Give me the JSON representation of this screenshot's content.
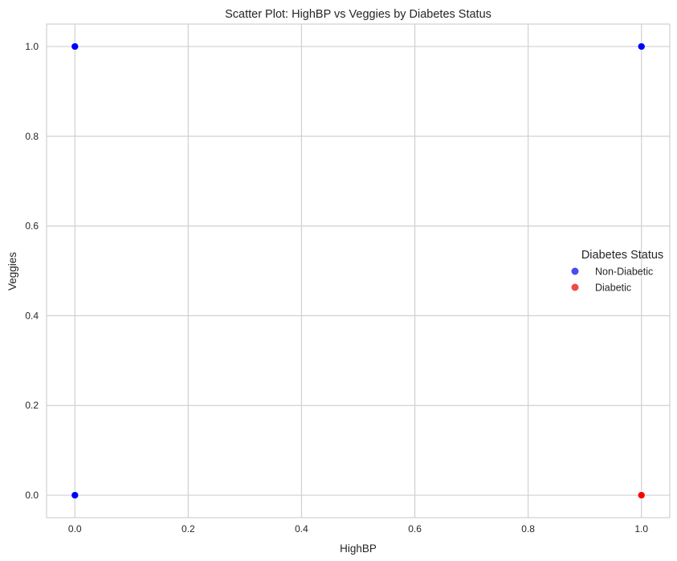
{
  "chart_data": {
    "type": "scatter",
    "title": "Scatter Plot: HighBP vs Veggies by Diabetes Status",
    "xlabel": "HighBP",
    "ylabel": "Veggies",
    "xlim": [
      -0.05,
      1.05
    ],
    "ylim": [
      -0.05,
      1.05
    ],
    "xticks": [
      0.0,
      0.2,
      0.4,
      0.6,
      0.8,
      1.0
    ],
    "xtick_labels": [
      "0.0",
      "0.2",
      "0.4",
      "0.6",
      "0.8",
      "1.0"
    ],
    "yticks": [
      0.0,
      0.2,
      0.4,
      0.6,
      0.8,
      1.0
    ],
    "ytick_labels": [
      "0.0",
      "0.2",
      "0.4",
      "0.6",
      "0.8",
      "1.0"
    ],
    "grid": true,
    "legend": {
      "title": "Diabetes Status",
      "placement": "center-right"
    },
    "series": [
      {
        "name": "Non-Diabetic",
        "color": "#0000ff",
        "legend_color": "#4a4af2",
        "points": [
          {
            "x": 0,
            "y": 0
          },
          {
            "x": 0,
            "y": 1
          },
          {
            "x": 1,
            "y": 1
          }
        ]
      },
      {
        "name": "Diabetic",
        "color": "#ff0000",
        "legend_color": "#ef4a4a",
        "points": [
          {
            "x": 1,
            "y": 0
          }
        ]
      }
    ],
    "colors": {
      "grid": "#d0d0d0",
      "spine": "#d0d0d0",
      "text": "#262626",
      "background": "#ffffff"
    }
  }
}
